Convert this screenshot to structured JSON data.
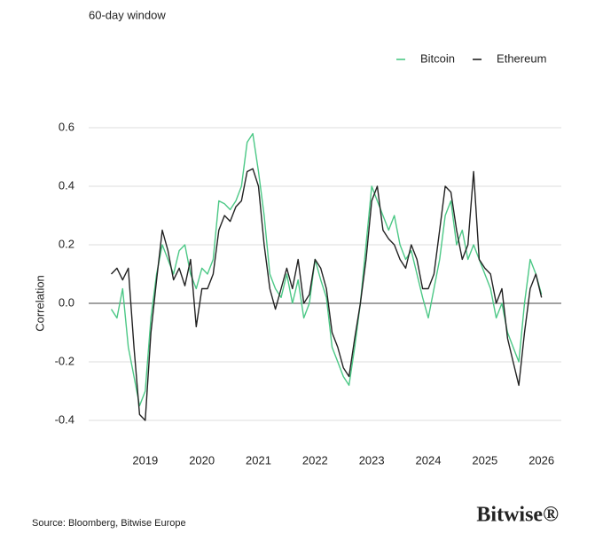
{
  "chart_data": {
    "type": "line",
    "title": "60-day window",
    "y_label": "Correlation",
    "x": [
      2018.4,
      2018.5,
      2018.6,
      2018.7,
      2018.8,
      2018.9,
      2019.0,
      2019.1,
      2019.2,
      2019.3,
      2019.4,
      2019.5,
      2019.6,
      2019.7,
      2019.8,
      2019.9,
      2020.0,
      2020.1,
      2020.2,
      2020.3,
      2020.4,
      2020.5,
      2020.6,
      2020.7,
      2020.8,
      2020.9,
      2021.0,
      2021.1,
      2021.2,
      2021.3,
      2021.4,
      2021.5,
      2021.6,
      2021.7,
      2021.8,
      2021.9,
      2022.0,
      2022.1,
      2022.2,
      2022.3,
      2022.4,
      2022.5,
      2022.6,
      2022.7,
      2022.8,
      2022.9,
      2023.0,
      2023.1,
      2023.2,
      2023.3,
      2023.4,
      2023.5,
      2023.6,
      2023.7,
      2023.8,
      2023.9,
      2024.0,
      2024.1,
      2024.2,
      2024.3,
      2024.4,
      2024.5,
      2024.6,
      2024.7,
      2024.8,
      2024.9,
      2025.0,
      2025.1,
      2025.2,
      2025.3,
      2025.4,
      2025.5,
      2025.6,
      2025.7,
      2025.8,
      2025.9,
      2026.0
    ],
    "series": [
      {
        "name": "Bitcoin",
        "color": "#4cc886",
        "values": [
          -0.02,
          -0.05,
          0.05,
          -0.15,
          -0.25,
          -0.35,
          -0.3,
          -0.05,
          0.1,
          0.2,
          0.15,
          0.1,
          0.18,
          0.2,
          0.1,
          0.05,
          0.12,
          0.1,
          0.15,
          0.35,
          0.34,
          0.32,
          0.35,
          0.4,
          0.55,
          0.58,
          0.45,
          0.3,
          0.1,
          0.05,
          0.02,
          0.1,
          0.0,
          0.08,
          -0.05,
          0.0,
          0.15,
          0.08,
          0.02,
          -0.15,
          -0.2,
          -0.25,
          -0.28,
          -0.15,
          0.0,
          0.2,
          0.4,
          0.35,
          0.3,
          0.25,
          0.3,
          0.2,
          0.15,
          0.18,
          0.1,
          0.02,
          -0.05,
          0.05,
          0.15,
          0.3,
          0.35,
          0.2,
          0.25,
          0.15,
          0.2,
          0.15,
          0.1,
          0.05,
          -0.05,
          0.0,
          -0.1,
          -0.15,
          -0.2,
          0.0,
          0.15,
          0.1,
          0.03
        ]
      },
      {
        "name": "Ethereum",
        "color": "#222222",
        "values": [
          0.1,
          0.12,
          0.08,
          0.12,
          -0.15,
          -0.38,
          -0.4,
          -0.1,
          0.08,
          0.25,
          0.18,
          0.08,
          0.12,
          0.06,
          0.15,
          -0.08,
          0.05,
          0.05,
          0.1,
          0.25,
          0.3,
          0.28,
          0.33,
          0.35,
          0.45,
          0.46,
          0.4,
          0.2,
          0.05,
          -0.02,
          0.05,
          0.12,
          0.05,
          0.15,
          0.0,
          0.03,
          0.15,
          0.12,
          0.05,
          -0.1,
          -0.15,
          -0.22,
          -0.25,
          -0.12,
          0.0,
          0.15,
          0.35,
          0.4,
          0.25,
          0.22,
          0.2,
          0.15,
          0.12,
          0.2,
          0.15,
          0.05,
          0.05,
          0.1,
          0.25,
          0.4,
          0.38,
          0.25,
          0.15,
          0.2,
          0.45,
          0.15,
          0.12,
          0.1,
          0.0,
          0.05,
          -0.12,
          -0.2,
          -0.28,
          -0.1,
          0.05,
          0.1,
          0.02
        ]
      }
    ],
    "xlim": [
      2018.0,
      2026.35
    ],
    "xticks": [
      2019,
      2020,
      2021,
      2022,
      2023,
      2024,
      2025,
      2026
    ],
    "ylim": [
      -0.45,
      0.65
    ],
    "yticks": [
      0.6,
      0.4,
      0.2,
      {
        "value": 0,
        "label": "0.0"
      },
      -0.2,
      -0.4
    ],
    "grid": true,
    "legend": "top-right"
  },
  "footer": {
    "source": "Source: Bloomberg, Bitwise Europe",
    "logo": "Bitwise®"
  }
}
